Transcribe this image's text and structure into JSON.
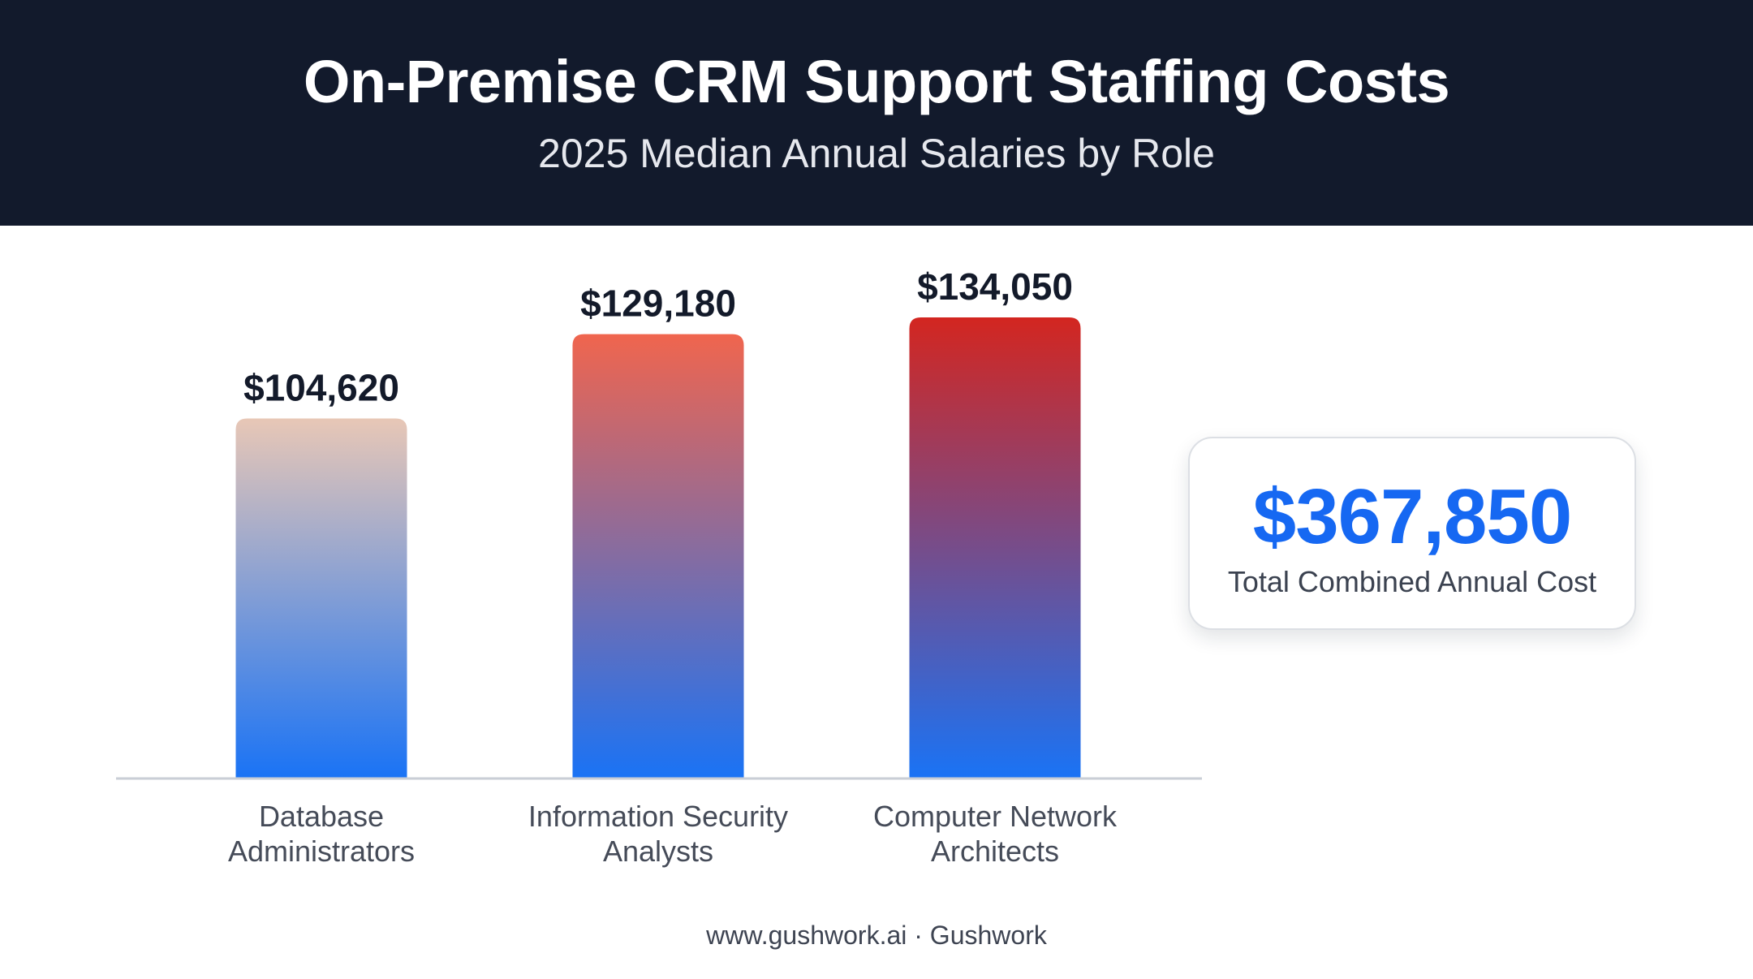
{
  "header": {
    "title": "On-Premise CRM Support Staffing Costs",
    "subtitle": "2025 Median Annual Salaries by Role"
  },
  "chart_data": {
    "type": "bar",
    "title": "On-Premise CRM Support Staffing Costs",
    "subtitle": "2025 Median Annual Salaries by Role",
    "categories": [
      [
        "Database",
        "Administrators"
      ],
      [
        "Information Security",
        "Analysts"
      ],
      [
        "Computer Network",
        "Architects"
      ]
    ],
    "values": [
      104620,
      129180,
      134050
    ],
    "value_labels": [
      "$104,620",
      "$129,180",
      "$134,050"
    ],
    "ylim": [
      0,
      134050
    ],
    "grid": false,
    "legend": "none",
    "colors": {
      "bottom": "#1a73f5",
      "tops": [
        "#e8c7b6",
        "#f0654e",
        "#d32620"
      ]
    }
  },
  "total": {
    "value": "$367,850",
    "label": "Total Combined Annual Cost",
    "color": "#1668f2"
  },
  "footer": {
    "text": "www.gushwork.ai · Gushwork"
  }
}
